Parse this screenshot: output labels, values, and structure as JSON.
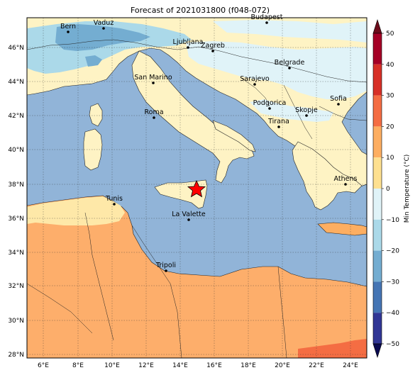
{
  "title": "Forecast of 2021031800 (f048-072)",
  "lat_ticks": [
    "46°N",
    "44°N",
    "42°N",
    "40°N",
    "38°N",
    "36°N",
    "34°N",
    "32°N",
    "30°N",
    "28°N"
  ],
  "lon_ticks": [
    "6°E",
    "8°E",
    "10°E",
    "12°E",
    "14°E",
    "16°E",
    "18°E",
    "20°E",
    "22°E",
    "24°E"
  ],
  "colorbar": {
    "label": "Min Temperature (°C)",
    "ticks": [
      "50",
      "40",
      "30",
      "20",
      "10",
      "0",
      "−10",
      "−20",
      "−30",
      "−40",
      "−50"
    ],
    "colors": [
      "#6d0c1b",
      "#a50026",
      "#d73027",
      "#f46d43",
      "#fdae61",
      "#fee090",
      "#e0f3f8",
      "#abd9e9",
      "#74add1",
      "#4575b4",
      "#313695",
      "#1e1e7a"
    ]
  },
  "cities": [
    {
      "name": "Bern"
    },
    {
      "name": "Vaduz"
    },
    {
      "name": "Budapest"
    },
    {
      "name": "Ljubljana"
    },
    {
      "name": "Zagreb"
    },
    {
      "name": "Belgrade"
    },
    {
      "name": "San Marino"
    },
    {
      "name": "Sarajevo"
    },
    {
      "name": "Sofia"
    },
    {
      "name": "Podgorica"
    },
    {
      "name": "Skopje"
    },
    {
      "name": "Roma"
    },
    {
      "name": "Tirana"
    },
    {
      "name": "Athens"
    },
    {
      "name": "Tunis"
    },
    {
      "name": "La Valette"
    },
    {
      "name": "Tripoli"
    }
  ],
  "marker": {
    "type": "star",
    "color": "#ff0000"
  }
}
